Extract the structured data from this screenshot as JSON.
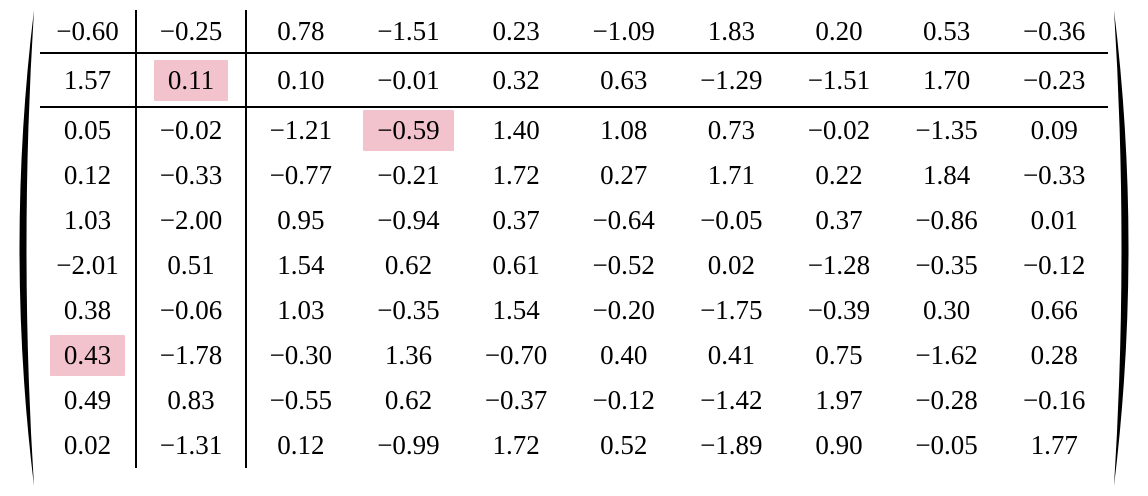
{
  "matrix": {
    "description": "10x10 numeric matrix with parentheses delimiters",
    "rows": [
      [
        "−0.60",
        "−0.25",
        "0.78",
        "−1.51",
        "0.23",
        "−1.09",
        "1.83",
        "0.20",
        "0.53",
        "−0.36"
      ],
      [
        "1.57",
        "0.11",
        "0.10",
        "−0.01",
        "0.32",
        "0.63",
        "−1.29",
        "−1.51",
        "1.70",
        "−0.23"
      ],
      [
        "0.05",
        "−0.02",
        "−1.21",
        "−0.59",
        "1.40",
        "1.08",
        "0.73",
        "−0.02",
        "−1.35",
        "0.09"
      ],
      [
        "0.12",
        "−0.33",
        "−0.77",
        "−0.21",
        "1.72",
        "0.27",
        "1.71",
        "0.22",
        "1.84",
        "−0.33"
      ],
      [
        "1.03",
        "−2.00",
        "0.95",
        "−0.94",
        "0.37",
        "−0.64",
        "−0.05",
        "0.37",
        "−0.86",
        "0.01"
      ],
      [
        "−2.01",
        "0.51",
        "1.54",
        "0.62",
        "0.61",
        "−0.52",
        "0.02",
        "−1.28",
        "−0.35",
        "−0.12"
      ],
      [
        "0.38",
        "−0.06",
        "1.03",
        "−0.35",
        "1.54",
        "−0.20",
        "−1.75",
        "−0.39",
        "0.30",
        "0.66"
      ],
      [
        "0.43",
        "−1.78",
        "−0.30",
        "1.36",
        "−0.70",
        "0.40",
        "0.41",
        "0.75",
        "−1.62",
        "0.28"
      ],
      [
        "0.49",
        "0.83",
        "−0.55",
        "0.62",
        "−0.37",
        "−0.12",
        "−1.42",
        "1.97",
        "−0.28",
        "−0.16"
      ],
      [
        "0.02",
        "−1.31",
        "0.12",
        "−0.99",
        "1.72",
        "0.52",
        "−1.89",
        "0.90",
        "−0.05",
        "1.77"
      ]
    ],
    "highlighted_cells": [
      {
        "row": 1,
        "col": 1,
        "value": "0.11"
      },
      {
        "row": 2,
        "col": 3,
        "value": "−0.59"
      },
      {
        "row": 7,
        "col": 0,
        "value": "0.43"
      }
    ],
    "column_dividers_after": [
      0,
      1
    ],
    "row_dividers_after": [
      0,
      1
    ],
    "colors": {
      "highlight": "#f3c3cd",
      "lines": "#000000",
      "text": "#000000",
      "background": "#ffffff"
    }
  }
}
